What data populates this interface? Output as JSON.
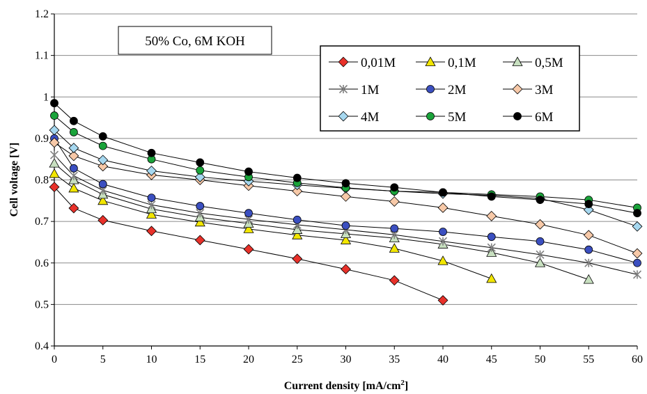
{
  "chart_data": {
    "type": "line",
    "annotation": "50% Co, 6M KOH",
    "xlabel": "Current density [mA/cm",
    "xlabel_sup": "2",
    "xlabel_end": "]",
    "ylabel": "Cell voltage [V]",
    "xlim": [
      0,
      60
    ],
    "ylim": [
      0.4,
      1.2
    ],
    "x_ticks": [
      0,
      5,
      10,
      15,
      20,
      25,
      30,
      35,
      40,
      45,
      50,
      55,
      60
    ],
    "y_ticks": [
      0.4,
      0.5,
      0.6,
      0.7,
      0.8,
      0.9,
      1,
      1.1,
      1.2
    ],
    "x_tick_labels": [
      "0",
      "5",
      "10",
      "15",
      "20",
      "25",
      "30",
      "35",
      "40",
      "45",
      "50",
      "55",
      "60"
    ],
    "y_tick_labels": [
      "0.4",
      "0.5",
      "0.6",
      "0.7",
      "0.8",
      "0.9",
      "1",
      "1.1",
      "1.2"
    ],
    "grid": "horizontal",
    "legend_position": "top-right",
    "series": [
      {
        "name": "0,01M",
        "marker": "diamond",
        "color": "#e8312a",
        "x": [
          0,
          2,
          5,
          10,
          15,
          20,
          25,
          30,
          35,
          40
        ],
        "y": [
          0.783,
          0.732,
          0.703,
          0.677,
          0.655,
          0.633,
          0.61,
          0.585,
          0.558,
          0.51
        ]
      },
      {
        "name": "0,1M",
        "marker": "triangle",
        "color": "#f2e600",
        "x": [
          0,
          2,
          5,
          10,
          15,
          20,
          25,
          30,
          35,
          40,
          45
        ],
        "y": [
          0.815,
          0.78,
          0.75,
          0.717,
          0.698,
          0.682,
          0.667,
          0.655,
          0.635,
          0.605,
          0.562
        ]
      },
      {
        "name": "0,5M",
        "marker": "triangle",
        "color": "#c8e0c0",
        "x": [
          0,
          2,
          5,
          10,
          15,
          20,
          25,
          30,
          35,
          40,
          45,
          50,
          55
        ],
        "y": [
          0.84,
          0.8,
          0.765,
          0.73,
          0.71,
          0.695,
          0.68,
          0.67,
          0.66,
          0.645,
          0.625,
          0.6,
          0.56
        ]
      },
      {
        "name": "1M",
        "marker": "star",
        "color": "#808080",
        "x": [
          0,
          2,
          5,
          10,
          15,
          20,
          25,
          30,
          35,
          40,
          45,
          50,
          55,
          60
        ],
        "y": [
          0.86,
          0.81,
          0.775,
          0.74,
          0.72,
          0.705,
          0.692,
          0.68,
          0.668,
          0.652,
          0.637,
          0.62,
          0.6,
          0.572
        ]
      },
      {
        "name": "2M",
        "marker": "circle",
        "color": "#3b4fc0",
        "x": [
          0,
          2,
          5,
          10,
          15,
          20,
          25,
          30,
          35,
          40,
          45,
          50,
          55,
          60
        ],
        "y": [
          0.9,
          0.828,
          0.79,
          0.757,
          0.737,
          0.72,
          0.704,
          0.69,
          0.683,
          0.675,
          0.663,
          0.652,
          0.632,
          0.6
        ]
      },
      {
        "name": "3M",
        "marker": "diamond",
        "color": "#f7c9a8",
        "x": [
          0,
          2,
          5,
          10,
          15,
          20,
          25,
          30,
          35,
          40,
          45,
          50,
          55,
          60
        ],
        "y": [
          0.89,
          0.858,
          0.833,
          0.812,
          0.8,
          0.786,
          0.773,
          0.76,
          0.748,
          0.733,
          0.713,
          0.693,
          0.667,
          0.623
        ]
      },
      {
        "name": "4M",
        "marker": "diamond",
        "color": "#a6d8f0",
        "x": [
          0,
          2,
          5,
          10,
          15,
          20,
          25,
          30,
          35,
          40,
          45,
          50,
          55,
          60
        ],
        "y": [
          0.92,
          0.877,
          0.848,
          0.822,
          0.807,
          0.797,
          0.788,
          0.78,
          0.773,
          0.767,
          0.763,
          0.755,
          0.728,
          0.688
        ]
      },
      {
        "name": "5M",
        "marker": "circle",
        "color": "#1aa33a",
        "x": [
          0,
          2,
          5,
          10,
          15,
          20,
          25,
          30,
          35,
          40,
          45,
          50,
          55,
          60
        ],
        "y": [
          0.955,
          0.915,
          0.882,
          0.85,
          0.823,
          0.807,
          0.793,
          0.781,
          0.773,
          0.77,
          0.765,
          0.76,
          0.752,
          0.733
        ]
      },
      {
        "name": "6M",
        "marker": "circle",
        "color": "#000000",
        "x": [
          0,
          2,
          5,
          10,
          15,
          20,
          25,
          30,
          35,
          40,
          45,
          50,
          55,
          60
        ],
        "y": [
          0.985,
          0.942,
          0.905,
          0.865,
          0.842,
          0.82,
          0.805,
          0.792,
          0.782,
          0.77,
          0.76,
          0.752,
          0.742,
          0.72
        ]
      }
    ]
  }
}
